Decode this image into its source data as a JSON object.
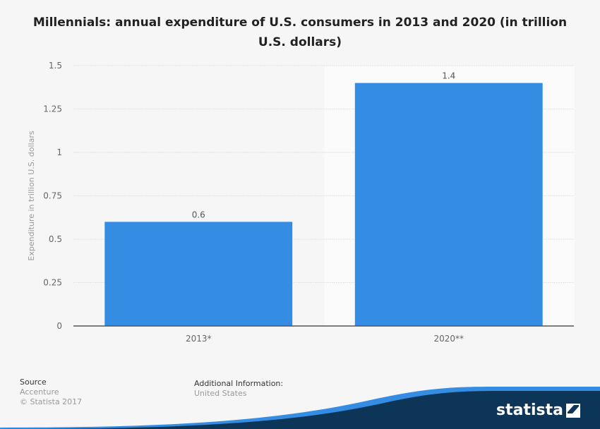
{
  "title": "Millennials: annual expenditure of U.S. consumers in 2013 and 2020 (in trillion U.S. dollars)",
  "colors": {
    "bar": "#348de3",
    "background": "#f6f6f6",
    "highlight_column": "#fbfbfb",
    "brand_dark": "#0c3557",
    "brand_light": "#348de3"
  },
  "chart_data": {
    "type": "bar",
    "title": "Millennials: annual expenditure of U.S. consumers in 2013 and 2020 (in trillion U.S. dollars)",
    "categories": [
      "2013*",
      "2020**"
    ],
    "values": [
      0.6,
      1.4
    ],
    "data_labels": [
      "0.6",
      "1.4"
    ],
    "xlabel": "",
    "ylabel": "Expenditure in trillion U.S. dollars",
    "ylim": [
      0,
      1.5
    ],
    "yticks": [
      0,
      0.25,
      0.5,
      0.75,
      1,
      1.25,
      1.5
    ],
    "ytick_labels": [
      "0",
      "0.25",
      "0.5",
      "0.75",
      "1",
      "1.25",
      "1.5"
    ],
    "grid": true,
    "legend": "none"
  },
  "footer": {
    "source_heading": "Source",
    "source_value": "Accenture",
    "copyright": "© Statista 2017",
    "info_heading": "Additional Information:",
    "info_value": "United States"
  },
  "brand": {
    "name": "statista",
    "logo_icon": "statista-logo-icon"
  }
}
